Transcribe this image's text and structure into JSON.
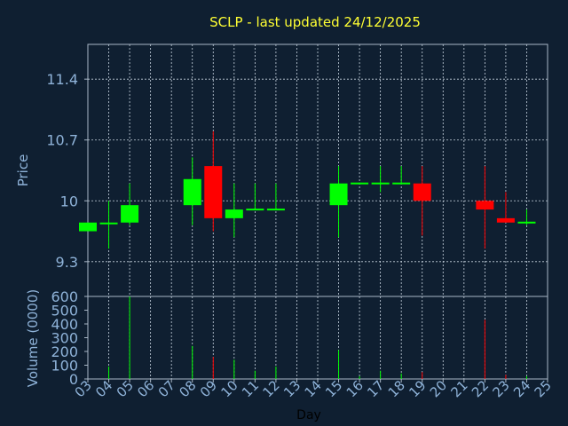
{
  "chart_data": {
    "type": "candlestick",
    "title": "SCLP - last updated 24/12/2025",
    "price_panel": {
      "ylabel": "Price",
      "ylim": [
        8.9,
        11.8
      ],
      "yticks": [
        9.3,
        10,
        10.7,
        11.4
      ],
      "ytick_labels": [
        "9.3",
        "10",
        "10.7",
        "11.4"
      ]
    },
    "volume_panel": {
      "ylabel": "Volume (0000)",
      "ylim": [
        0,
        600
      ],
      "yticks": [
        0,
        100,
        200,
        300,
        400,
        500,
        600
      ],
      "ytick_labels": [
        "0",
        "100",
        "200",
        "300",
        "400",
        "500",
        "600"
      ]
    },
    "xlabel": "Day",
    "xlim": [
      3,
      25
    ],
    "x_ticks": [
      "03",
      "04",
      "05",
      "06",
      "07",
      "08",
      "09",
      "10",
      "11",
      "12",
      "13",
      "14",
      "15",
      "16",
      "17",
      "18",
      "19",
      "20",
      "21",
      "22",
      "23",
      "24",
      "25"
    ],
    "colors": {
      "up": "#00ff00",
      "down": "#ff0000"
    },
    "candles": [
      {
        "day": 3,
        "open": 9.65,
        "high": 9.75,
        "low": 9.65,
        "close": 9.75,
        "volume": 0
      },
      {
        "day": 4,
        "open": 9.75,
        "high": 10.0,
        "low": 9.45,
        "close": 9.75,
        "volume": 90
      },
      {
        "day": 5,
        "open": 9.75,
        "high": 10.2,
        "low": 9.72,
        "close": 9.95,
        "volume": 600
      },
      {
        "day": 8,
        "open": 9.95,
        "high": 10.5,
        "low": 9.72,
        "close": 10.25,
        "volume": 240
      },
      {
        "day": 9,
        "open": 10.4,
        "high": 10.8,
        "low": 9.65,
        "close": 9.8,
        "volume": 160
      },
      {
        "day": 10,
        "open": 9.8,
        "high": 10.2,
        "low": 9.58,
        "close": 9.9,
        "volume": 140
      },
      {
        "day": 11,
        "open": 9.89,
        "high": 10.2,
        "low": 9.89,
        "close": 9.91,
        "volume": 60
      },
      {
        "day": 12,
        "open": 9.89,
        "high": 10.2,
        "low": 9.89,
        "close": 9.91,
        "volume": 90
      },
      {
        "day": 15,
        "open": 9.95,
        "high": 10.4,
        "low": 9.58,
        "close": 10.2,
        "volume": 210
      },
      {
        "day": 16,
        "open": 10.19,
        "high": 10.21,
        "low": 10.19,
        "close": 10.21,
        "volume": 20
      },
      {
        "day": 17,
        "open": 10.19,
        "high": 10.4,
        "low": 10.1,
        "close": 10.21,
        "volume": 60
      },
      {
        "day": 18,
        "open": 10.19,
        "high": 10.4,
        "low": 10.19,
        "close": 10.21,
        "volume": 40
      },
      {
        "day": 19,
        "open": 10.2,
        "high": 10.4,
        "low": 9.6,
        "close": 10.0,
        "volume": 50
      },
      {
        "day": 22,
        "open": 10.0,
        "high": 10.4,
        "low": 9.45,
        "close": 9.9,
        "volume": 430
      },
      {
        "day": 23,
        "open": 9.8,
        "high": 10.1,
        "low": 9.75,
        "close": 9.75,
        "volume": 30
      },
      {
        "day": 24,
        "open": 9.74,
        "high": 9.9,
        "low": 9.72,
        "close": 9.76,
        "volume": 20
      }
    ]
  }
}
